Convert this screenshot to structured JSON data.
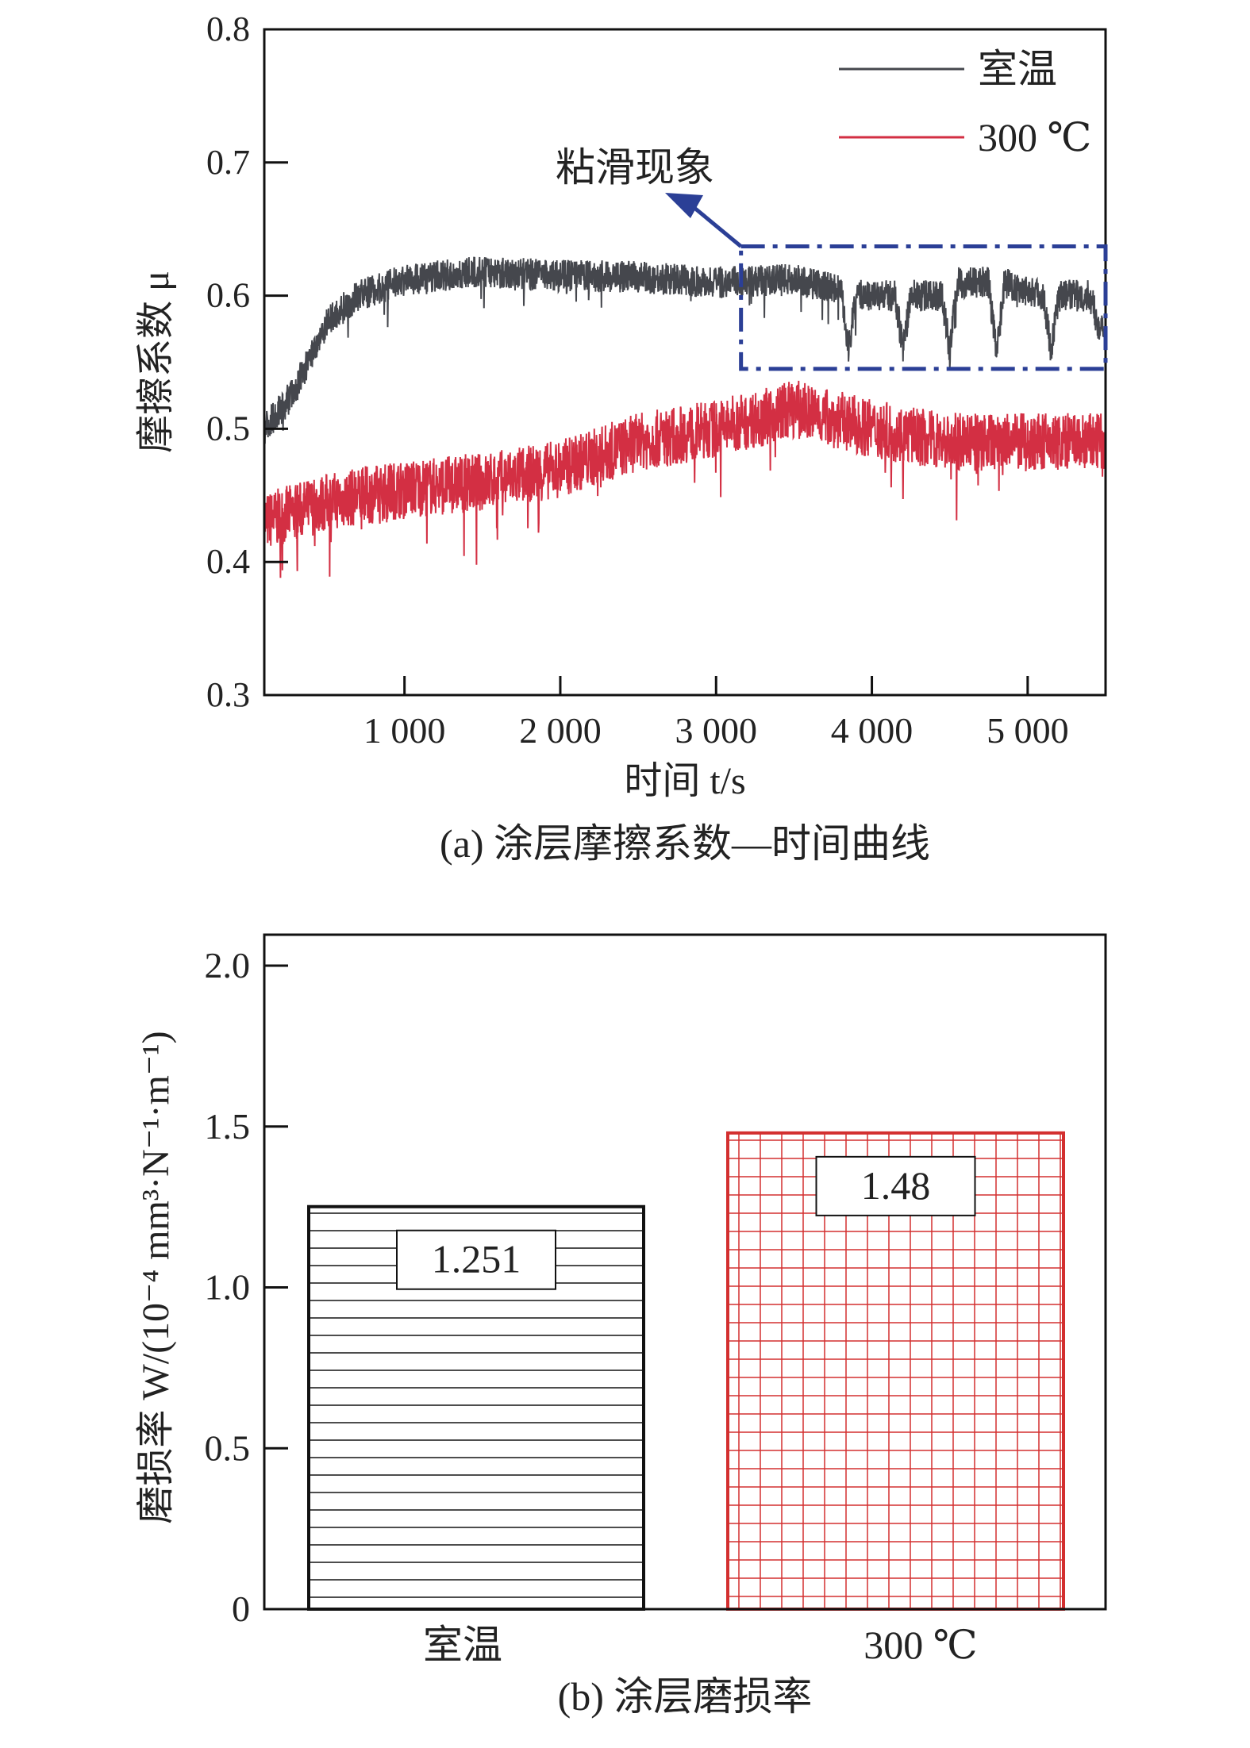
{
  "chart_data": [
    {
      "type": "line",
      "caption": "(a) 涂层摩擦系数—时间曲线",
      "xlabel": "时间 t/s",
      "ylabel": "摩擦系数 μ",
      "xlim": [
        100,
        5500
      ],
      "ylim": [
        0.3,
        0.8
      ],
      "xticks": [
        1000,
        2000,
        3000,
        4000,
        5000
      ],
      "xtick_labels": [
        "1 000",
        "2 000",
        "3 000",
        "4 000",
        "5 000"
      ],
      "yticks": [
        0.3,
        0.4,
        0.5,
        0.6,
        0.7,
        0.8
      ],
      "ytick_labels": [
        "0.3",
        "0.4",
        "0.5",
        "0.6",
        "0.7",
        "0.8"
      ],
      "legend": "top-right",
      "series": [
        {
          "name": "室温",
          "color": "#45474d",
          "noise": 0.012,
          "x": [
            100,
            300,
            500,
            700,
            1000,
            1500,
            2000,
            2500,
            3000,
            3500,
            3800,
            3850,
            3900,
            4150,
            4200,
            4250,
            4450,
            4500,
            4550,
            4750,
            4800,
            4850,
            5100,
            5150,
            5200,
            5400,
            5450,
            5500
          ],
          "y": [
            0.5,
            0.53,
            0.58,
            0.6,
            0.612,
            0.618,
            0.615,
            0.614,
            0.61,
            0.612,
            0.605,
            0.56,
            0.6,
            0.6,
            0.56,
            0.6,
            0.6,
            0.56,
            0.61,
            0.61,
            0.555,
            0.61,
            0.6,
            0.56,
            0.6,
            0.6,
            0.58,
            0.57
          ]
        },
        {
          "name": "300 ℃",
          "color": "#d32f43",
          "noise": 0.022,
          "x": [
            100,
            500,
            1000,
            1500,
            2000,
            2500,
            3000,
            3500,
            4000,
            4500,
            5000,
            5500
          ],
          "y": [
            0.43,
            0.445,
            0.455,
            0.46,
            0.47,
            0.49,
            0.5,
            0.515,
            0.5,
            0.49,
            0.49,
            0.49
          ]
        }
      ],
      "annotation": {
        "text": "粘滑现象",
        "box_x": [
          3160,
          5500
        ],
        "box_y": [
          0.545,
          0.637
        ],
        "color": "#2b3f96"
      }
    },
    {
      "type": "bar",
      "caption": "(b) 涂层磨损率",
      "ylabel": "磨损率 W/(10⁻⁴ mm³·N⁻¹·m⁻¹)",
      "ylim": [
        0,
        2.1
      ],
      "yticks": [
        0,
        0.5,
        1.0,
        1.5,
        2.0
      ],
      "ytick_labels": [
        "0",
        "0.5",
        "1.0",
        "1.5",
        "2.0"
      ],
      "categories": [
        "室温",
        "300 ℃"
      ],
      "values": [
        1.251,
        1.48
      ],
      "value_labels": [
        "1.251",
        "1.48"
      ],
      "colors": [
        "#111111",
        "#d32f2f"
      ]
    }
  ]
}
